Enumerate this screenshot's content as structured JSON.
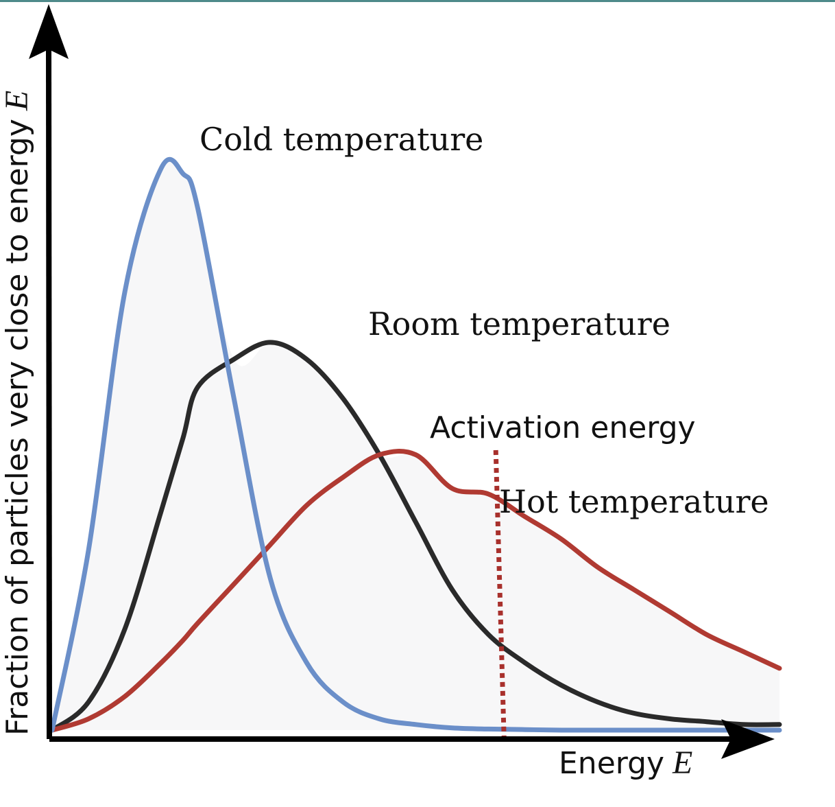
{
  "colors": {
    "top_rule": "#4f8a8a",
    "axis": "#000000",
    "cold": "#6b8fc9",
    "room": "#2a2a2a",
    "hot": "#b03a32",
    "activation": "#a8302c",
    "fill": "#f7f7f8"
  },
  "chart_data": {
    "type": "line",
    "xlabel": "Energy",
    "xlabel_symbol": "E",
    "ylabel": "Fraction of particles very close to energy",
    "ylabel_symbol": "E",
    "xlim": [
      0,
      10
    ],
    "ylim": [
      0,
      1
    ],
    "grid": false,
    "ticks": false,
    "x": [
      0,
      0.5,
      1,
      1.5,
      1.8,
      2,
      2.5,
      3,
      3.5,
      4,
      4.5,
      5,
      5.5,
      6,
      6.5,
      7,
      7.5,
      8,
      8.5,
      9,
      9.5,
      10
    ],
    "series": [
      {
        "name": "Cold temperature",
        "color": "#6b8fc9",
        "values": [
          0,
          0.32,
          0.78,
          1.0,
          0.99,
          0.93,
          0.59,
          0.27,
          0.12,
          0.05,
          0.02,
          0.01,
          0.004,
          0.002,
          0.001,
          0,
          0,
          0,
          0,
          0,
          0,
          0
        ]
      },
      {
        "name": "Room temperature",
        "color": "#2a2a2a",
        "values": [
          0,
          0.05,
          0.18,
          0.39,
          0.52,
          0.61,
          0.66,
          0.69,
          0.66,
          0.59,
          0.49,
          0.37,
          0.25,
          0.17,
          0.12,
          0.08,
          0.05,
          0.03,
          0.02,
          0.015,
          0.01,
          0.01
        ]
      },
      {
        "name": "Hot temperature",
        "color": "#b03a32",
        "values": [
          0,
          0.02,
          0.06,
          0.12,
          0.16,
          0.19,
          0.26,
          0.33,
          0.4,
          0.45,
          0.49,
          0.49,
          0.43,
          0.42,
          0.38,
          0.34,
          0.29,
          0.25,
          0.21,
          0.17,
          0.14,
          0.11
        ]
      }
    ],
    "annotations": [
      {
        "label": "Activation energy",
        "type": "vline",
        "x": 6.1,
        "style": "dotted",
        "color": "#a8302c"
      }
    ]
  }
}
